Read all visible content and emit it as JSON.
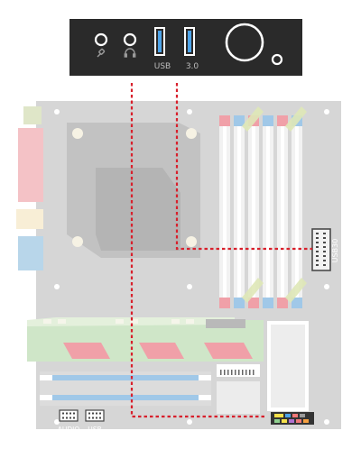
{
  "front_panel": {
    "labels": {
      "usb": "USB",
      "usb_version": "3.0"
    }
  },
  "motherboard": {
    "headers": {
      "usb30": "USB30",
      "audio": "AUDIO",
      "usb": "USB"
    }
  },
  "colors": {
    "panel": "#2a2a2a",
    "board": "#d6d6d6",
    "leader_line": "#d8202c",
    "usb3_port": "#4da3e8",
    "ram_slot_pink": "#f0a0a8",
    "ram_slot_blue": "#a0c8e8",
    "cpu_fan": "#bfbfbf",
    "heatsink_green": "#cfe6c8"
  },
  "icons": [
    "microphone-icon",
    "headphones-icon",
    "power-button-icon",
    "led-icon"
  ]
}
